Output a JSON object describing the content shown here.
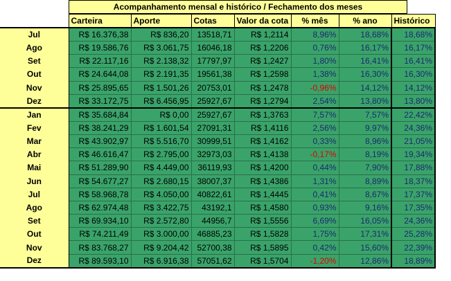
{
  "title": "Acompanhamento mensal e histórico / Fechamento dos meses",
  "headers": [
    "Carteira",
    "Aporte",
    "Cotas",
    "Valor da cota",
    "% mês",
    "% ano",
    "Histórico"
  ],
  "rows": [
    {
      "month": "Jul",
      "carteira": "R$ 16.376,38",
      "aporte": "R$ 836,20",
      "cotas": "13518,71",
      "valor": "R$ 1,2114",
      "mes": "8,96%",
      "ano": "18,68%",
      "hist": "18,68%"
    },
    {
      "month": "Ago",
      "carteira": "R$ 19.586,76",
      "aporte": "R$ 3.061,75",
      "cotas": "16046,18",
      "valor": "R$ 1,2206",
      "mes": "0,76%",
      "ano": "16,17%",
      "hist": "16,17%"
    },
    {
      "month": "Set",
      "carteira": "R$ 22.117,16",
      "aporte": "R$ 2.138,32",
      "cotas": "17797,97",
      "valor": "R$ 1,2427",
      "mes": "1,80%",
      "ano": "16,41%",
      "hist": "16,41%"
    },
    {
      "month": "Out",
      "carteira": "R$ 24.644,08",
      "aporte": "R$ 2.191,35",
      "cotas": "19561,38",
      "valor": "R$ 1,2598",
      "mes": "1,38%",
      "ano": "16,30%",
      "hist": "16,30%"
    },
    {
      "month": "Nov",
      "carteira": "R$ 25.895,65",
      "aporte": "R$ 1.501,26",
      "cotas": "20753,01",
      "valor": "R$ 1,2478",
      "mes": "-0,96%",
      "ano": "14,12%",
      "hist": "14,12%"
    },
    {
      "month": "Dez",
      "carteira": "R$ 33.172,75",
      "aporte": "R$ 6.456,95",
      "cotas": "25927,67",
      "valor": "R$ 1,2794",
      "mes": "2,54%",
      "ano": "13,80%",
      "hist": "13,80%"
    },
    {
      "month": "Jan",
      "carteira": "R$ 35.684,84",
      "aporte": "R$ 0,00",
      "cotas": "25927,67",
      "valor": "R$ 1,3763",
      "mes": "7,57%",
      "ano": "7,57%",
      "hist": "22,42%"
    },
    {
      "month": "Fev",
      "carteira": "R$ 38.241,29",
      "aporte": "R$ 1.601,54",
      "cotas": "27091,31",
      "valor": "R$ 1,4116",
      "mes": "2,56%",
      "ano": "9,97%",
      "hist": "24,36%"
    },
    {
      "month": "Mar",
      "carteira": "R$ 43.902,97",
      "aporte": "R$ 5.516,70",
      "cotas": "30999,51",
      "valor": "R$ 1,4162",
      "mes": "0,33%",
      "ano": "8,96%",
      "hist": "21,05%"
    },
    {
      "month": "Abr",
      "carteira": "R$ 46.616,47",
      "aporte": "R$ 2.795,00",
      "cotas": "32973,03",
      "valor": "R$ 1,4138",
      "mes": "-0,17%",
      "ano": "8,19%",
      "hist": "19,34%"
    },
    {
      "month": "Mai",
      "carteira": "R$ 51.289,90",
      "aporte": "R$ 4.449,00",
      "cotas": "36119,93",
      "valor": "R$ 1,4200",
      "mes": "0,44%",
      "ano": "7,90%",
      "hist": "17,88%"
    },
    {
      "month": "Jun",
      "carteira": "R$ 54.677,27",
      "aporte": "R$ 2.680,15",
      "cotas": "38007,37",
      "valor": "R$ 1,4386",
      "mes": "1,31%",
      "ano": "8,89%",
      "hist": "18,37%"
    },
    {
      "month": "Jul",
      "carteira": "R$ 58.968,78",
      "aporte": "R$ 4.050,00",
      "cotas": "40822,61",
      "valor": "R$ 1,4445",
      "mes": "0,41%",
      "ano": "8,67%",
      "hist": "17,37%"
    },
    {
      "month": "Ago",
      "carteira": "R$ 62.974,48",
      "aporte": "R$ 3.422,75",
      "cotas": "43192,1",
      "valor": "R$ 1,4580",
      "mes": "0,93%",
      "ano": "9,16%",
      "hist": "17,35%"
    },
    {
      "month": "Set",
      "carteira": "R$ 69.934,10",
      "aporte": "R$ 2.572,80",
      "cotas": "44956,7",
      "valor": "R$ 1,5556",
      "mes": "6,69%",
      "ano": "16,05%",
      "hist": "24,36%"
    },
    {
      "month": "Out",
      "carteira": "R$ 74.211,49",
      "aporte": "R$ 3.000,00",
      "cotas": "46885,23",
      "valor": "R$ 1,5828",
      "mes": "1,75%",
      "ano": "17,31%",
      "hist": "25,28%"
    },
    {
      "month": "Nov",
      "carteira": "R$ 83.768,27",
      "aporte": "R$ 9.204,42",
      "cotas": "52700,38",
      "valor": "R$ 1,5895",
      "mes": "0,42%",
      "ano": "15,60%",
      "hist": "22,39%"
    },
    {
      "month": "Dez",
      "carteira": "R$ 89.593,10",
      "aporte": "R$ 6.916,38",
      "cotas": "57051,62",
      "valor": "R$ 1,5704",
      "mes": "-1,20%",
      "ano": "12,86%",
      "hist": "18,89%"
    }
  ],
  "colors": {
    "cell": "#3aa36a",
    "label": "#ffff99",
    "negative": "#e00000",
    "percent": "#1a2a6e",
    "comment_marker": "#c00000"
  }
}
